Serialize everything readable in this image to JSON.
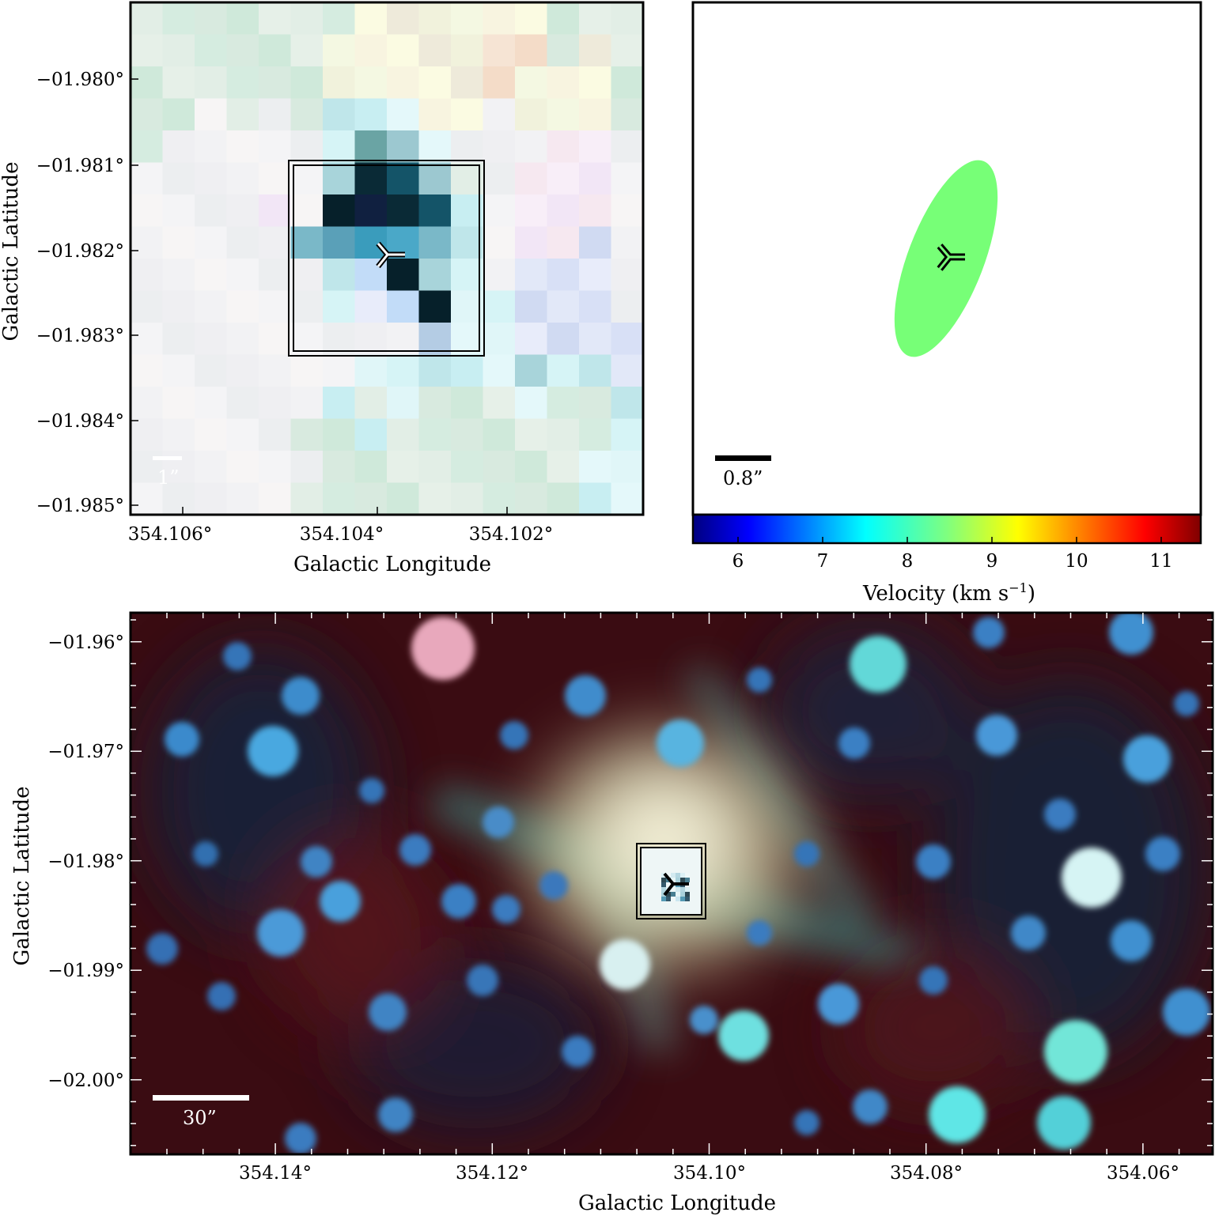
{
  "panels": {
    "top_left": {
      "xlabel": "Galactic Longitude",
      "ylabel": "Galactic Latitude",
      "x_ticks": [
        "354.106°",
        "354.104°",
        "354.102°"
      ],
      "y_ticks": [
        "−01.980°",
        "−01.981°",
        "−01.982°",
        "−01.983°",
        "−01.984°",
        "−01.985°"
      ],
      "scale_label": "1”",
      "scale_color": "#ffffff"
    },
    "top_right": {
      "scale_label": "0.8”",
      "ellipse_color": "#77ff77",
      "colorbar": {
        "label": "Velocity (km s",
        "label_sup": "−1",
        "label_close": ")",
        "ticks": [
          "6",
          "7",
          "8",
          "9",
          "10",
          "11"
        ],
        "colormap": "jet"
      }
    },
    "bottom": {
      "xlabel": "Galactic Longitude",
      "ylabel": "Galactic Latitude",
      "x_ticks": [
        "354.14°",
        "354.12°",
        "354.10°",
        "354.08°",
        "354.06°"
      ],
      "y_ticks": [
        "−01.96°",
        "−01.97°",
        "−01.98°",
        "−01.99°",
        "−02.00°"
      ],
      "scale_label": "30”",
      "scale_color": "#ffffff"
    }
  }
}
